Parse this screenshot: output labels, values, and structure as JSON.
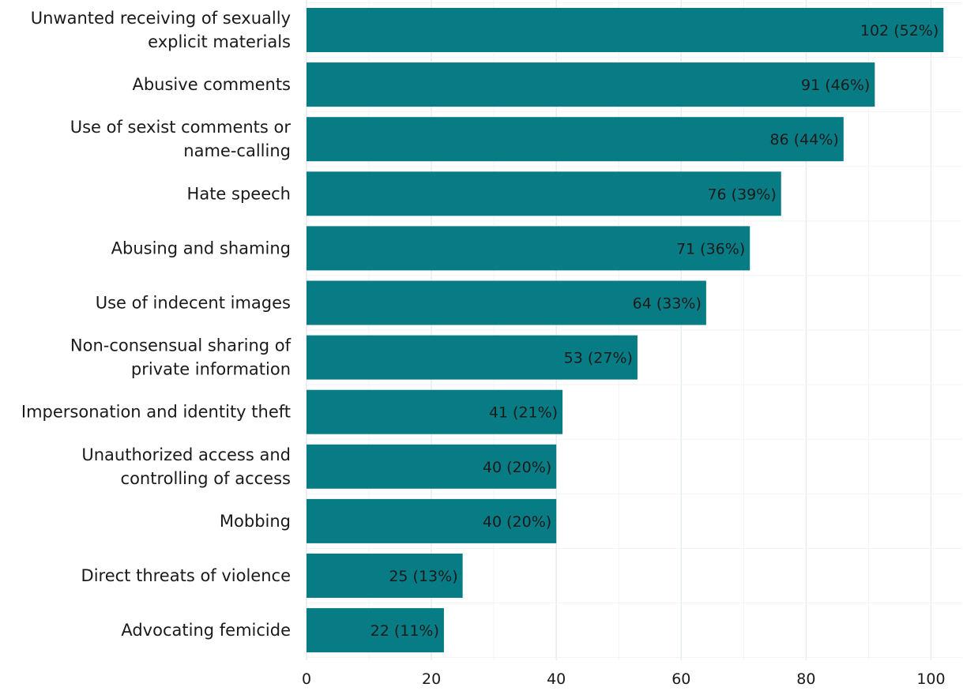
{
  "chart_data": {
    "type": "bar",
    "orientation": "horizontal",
    "title": "",
    "xlabel": "",
    "ylabel": "",
    "categories": [
      "Unwanted receiving of sexually explicit materials",
      "Abusive comments",
      "Use of sexist comments or name-calling",
      "Hate speech",
      "Abusing and shaming",
      "Use of indecent images",
      "Non-consensual sharing of private information",
      "Impersonation and identity theft",
      "Unauthorized access and controlling of access",
      "Mobbing",
      "Direct threats of violence",
      "Advocating femicide"
    ],
    "category_lines": [
      [
        "Unwanted receiving of sexually",
        "explicit materials"
      ],
      [
        "Abusive comments"
      ],
      [
        "Use of sexist comments or",
        "name-calling"
      ],
      [
        "Hate speech"
      ],
      [
        "Abusing and shaming"
      ],
      [
        "Use of indecent images"
      ],
      [
        "Non-consensual sharing of",
        "private information"
      ],
      [
        "Impersonation and identity theft"
      ],
      [
        "Unauthorized access and",
        "controlling of access"
      ],
      [
        "Mobbing"
      ],
      [
        "Direct threats of violence"
      ],
      [
        "Advocating femicide"
      ]
    ],
    "values": [
      102,
      91,
      86,
      76,
      71,
      64,
      53,
      41,
      40,
      40,
      25,
      22
    ],
    "data_labels": [
      "102 (52%)",
      "91 (46%)",
      "86 (44%)",
      "76 (39%)",
      "71 (36%)",
      "64 (33%)",
      "53 (27%)",
      "41 (21%)",
      "40 (20%)",
      "40 (20%)",
      "25 (13%)",
      "22 (11%)"
    ],
    "xlim": [
      0,
      105
    ],
    "xticks": [
      0,
      20,
      40,
      60,
      80,
      100
    ],
    "grid": true,
    "bar_color": "#087c85"
  }
}
